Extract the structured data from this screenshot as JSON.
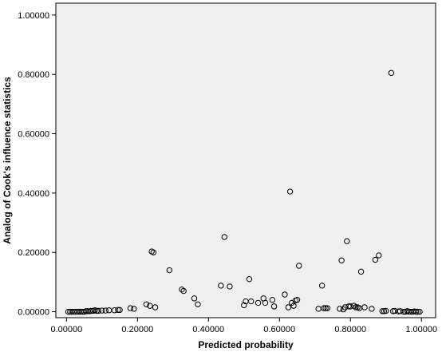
{
  "chart_data": {
    "type": "scatter",
    "title": "",
    "xlabel": "Predicted probability",
    "ylabel": "Analog of Cook's influence statistics",
    "xlim": [
      -0.03,
      1.04
    ],
    "ylim": [
      -0.02,
      1.04
    ],
    "x_ticks": [
      0,
      0.2,
      0.4,
      0.6,
      0.8,
      1.0
    ],
    "x_tick_labels": [
      "0.00000",
      "0.20000",
      "0.40000",
      "0.60000",
      "0.80000",
      "1.00000"
    ],
    "y_ticks": [
      0,
      0.2,
      0.4,
      0.6,
      0.8,
      1.0
    ],
    "y_tick_labels": [
      "0.00000",
      "0.20000",
      "0.40000",
      "0.60000",
      "0.80000",
      "1.00000"
    ],
    "grid": false,
    "plot_background": "#f0f0f0",
    "marker_color": "#000000",
    "points": [
      [
        0.005,
        0.0
      ],
      [
        0.01,
        0.0
      ],
      [
        0.015,
        0.0
      ],
      [
        0.02,
        0.0
      ],
      [
        0.025,
        0.0
      ],
      [
        0.03,
        0.0
      ],
      [
        0.035,
        0.0
      ],
      [
        0.04,
        0.0
      ],
      [
        0.045,
        0.0
      ],
      [
        0.05,
        0.0
      ],
      [
        0.055,
        0.002
      ],
      [
        0.06,
        0.002
      ],
      [
        0.065,
        0.002
      ],
      [
        0.07,
        0.003
      ],
      [
        0.075,
        0.003
      ],
      [
        0.08,
        0.005
      ],
      [
        0.085,
        0.003
      ],
      [
        0.09,
        0.003
      ],
      [
        0.1,
        0.004
      ],
      [
        0.11,
        0.004
      ],
      [
        0.12,
        0.005
      ],
      [
        0.135,
        0.005
      ],
      [
        0.145,
        0.006
      ],
      [
        0.15,
        0.006
      ],
      [
        0.18,
        0.012
      ],
      [
        0.19,
        0.01
      ],
      [
        0.225,
        0.025
      ],
      [
        0.235,
        0.02
      ],
      [
        0.24,
        0.203
      ],
      [
        0.245,
        0.2
      ],
      [
        0.25,
        0.015
      ],
      [
        0.29,
        0.14
      ],
      [
        0.325,
        0.075
      ],
      [
        0.33,
        0.07
      ],
      [
        0.36,
        0.045
      ],
      [
        0.37,
        0.025
      ],
      [
        0.435,
        0.088
      ],
      [
        0.445,
        0.252
      ],
      [
        0.46,
        0.085
      ],
      [
        0.5,
        0.022
      ],
      [
        0.505,
        0.035
      ],
      [
        0.515,
        0.11
      ],
      [
        0.52,
        0.035
      ],
      [
        0.54,
        0.03
      ],
      [
        0.555,
        0.045
      ],
      [
        0.56,
        0.03
      ],
      [
        0.58,
        0.04
      ],
      [
        0.585,
        0.018
      ],
      [
        0.615,
        0.058
      ],
      [
        0.625,
        0.015
      ],
      [
        0.63,
        0.405
      ],
      [
        0.635,
        0.03
      ],
      [
        0.64,
        0.02
      ],
      [
        0.645,
        0.038
      ],
      [
        0.65,
        0.04
      ],
      [
        0.655,
        0.155
      ],
      [
        0.71,
        0.01
      ],
      [
        0.72,
        0.088
      ],
      [
        0.725,
        0.012
      ],
      [
        0.73,
        0.012
      ],
      [
        0.735,
        0.012
      ],
      [
        0.77,
        0.01
      ],
      [
        0.775,
        0.173
      ],
      [
        0.78,
        0.008
      ],
      [
        0.785,
        0.015
      ],
      [
        0.79,
        0.238
      ],
      [
        0.795,
        0.018
      ],
      [
        0.8,
        0.018
      ],
      [
        0.81,
        0.02
      ],
      [
        0.815,
        0.015
      ],
      [
        0.82,
        0.015
      ],
      [
        0.825,
        0.012
      ],
      [
        0.83,
        0.135
      ],
      [
        0.84,
        0.015
      ],
      [
        0.86,
        0.01
      ],
      [
        0.87,
        0.175
      ],
      [
        0.88,
        0.19
      ],
      [
        0.89,
        0.002
      ],
      [
        0.895,
        0.002
      ],
      [
        0.9,
        0.003
      ],
      [
        0.915,
        0.805
      ],
      [
        0.92,
        0.002
      ],
      [
        0.925,
        0.003
      ],
      [
        0.935,
        0.001
      ],
      [
        0.94,
        0.002
      ],
      [
        0.95,
        0.0
      ],
      [
        0.955,
        0.0
      ],
      [
        0.96,
        0.002
      ],
      [
        0.965,
        0.0
      ],
      [
        0.97,
        0.0
      ],
      [
        0.975,
        0.0
      ],
      [
        0.98,
        0.001
      ],
      [
        0.985,
        0.0
      ],
      [
        0.99,
        0.0
      ],
      [
        0.995,
        0.0
      ]
    ]
  }
}
